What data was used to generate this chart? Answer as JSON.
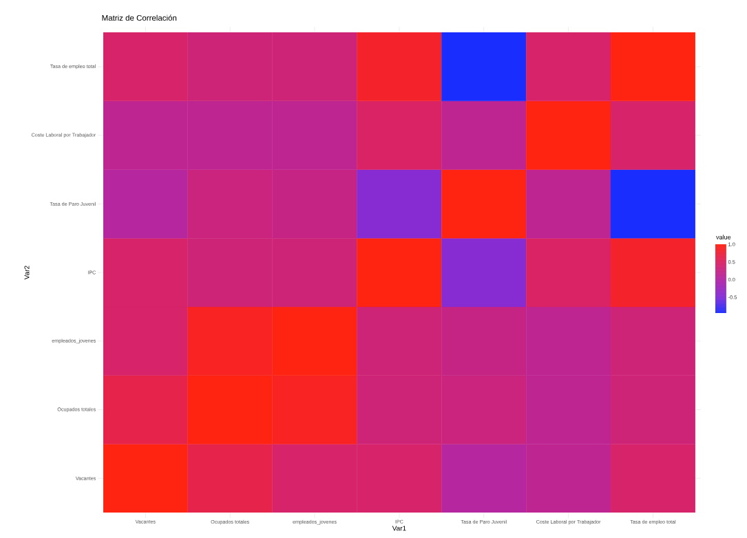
{
  "chart_data": {
    "type": "heatmap",
    "title": "Matriz de Correlación",
    "xlabel": "Var1",
    "ylabel": "Var2",
    "clabel": "value",
    "categories": [
      "Vacantes",
      "Ocupados totales",
      "empleados_jovenes",
      "IPC",
      "Tasa de Paro Juvenil",
      "Coste Laboral por Trabajador",
      "Tasa de  empleo total"
    ],
    "y_categories": [
      "Tasa de  empleo total",
      "Coste Laboral por Trabajador",
      "Tasa de Paro Juvenil",
      "IPC",
      "empleados_jovenes",
      "Ocupados totales",
      "Vacantes"
    ],
    "cells": [
      [
        0.45,
        0.35,
        0.35,
        0.85,
        -0.95,
        0.45,
        1
      ],
      [
        0.15,
        0.15,
        0.15,
        0.5,
        0.15,
        1,
        0.45
      ],
      [
        0.05,
        0.3,
        0.25,
        -0.45,
        1,
        0.15,
        -0.95
      ],
      [
        0.45,
        0.35,
        0.35,
        1,
        -0.45,
        0.5,
        0.85
      ],
      [
        0.45,
        0.9,
        1,
        0.35,
        0.25,
        0.15,
        0.35
      ],
      [
        0.65,
        1,
        0.9,
        0.35,
        0.3,
        0.15,
        0.35
      ],
      [
        1,
        0.65,
        0.45,
        0.45,
        0.05,
        0.15,
        0.45
      ]
    ],
    "clim": [
      -0.95,
      1
    ],
    "cticks": [
      {
        "value": -0.5,
        "label": "-0.5"
      },
      {
        "value": 0,
        "label": "0.0"
      },
      {
        "value": 0.5,
        "label": "0.5"
      },
      {
        "value": 1,
        "label": "1.0"
      }
    ]
  }
}
